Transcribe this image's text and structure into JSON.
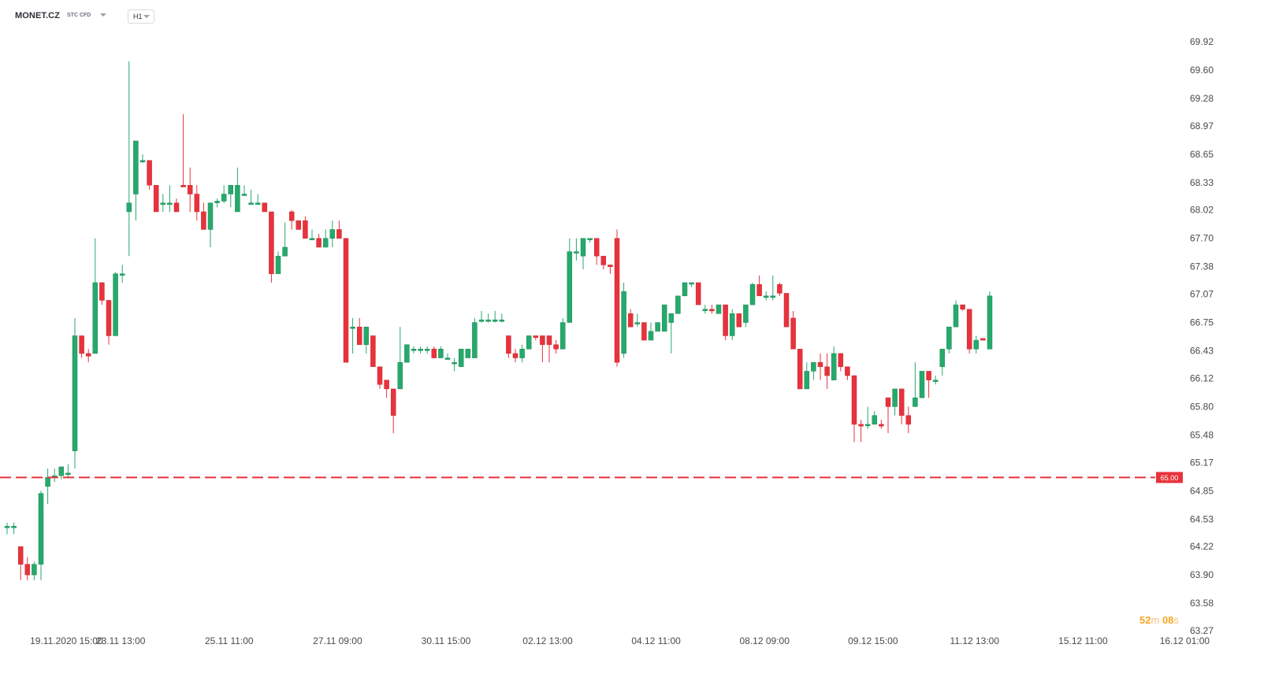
{
  "header": {
    "symbol": "MONET.CZ",
    "instrument_type": "STC CFD",
    "timeframe": "H1"
  },
  "countdown": {
    "minutes": "52",
    "m_unit": "m",
    "seconds": "08",
    "s_unit": "s"
  },
  "colors": {
    "up": "#26a96c",
    "down": "#e8323c",
    "price_line": "#e8323c",
    "axis_text": "#4a4a4a",
    "countdown": "#f5a623"
  },
  "chart_data": {
    "type": "candlestick",
    "timeframe": "H1",
    "y_ticks": [
      "69.92",
      "69.60",
      "69.28",
      "68.97",
      "68.65",
      "68.33",
      "68.02",
      "67.70",
      "67.38",
      "67.07",
      "66.75",
      "66.43",
      "66.12",
      "65.80",
      "65.48",
      "65.17",
      "64.85",
      "64.53",
      "64.22",
      "63.90",
      "63.58",
      "63.27"
    ],
    "ylim": [
      63.27,
      69.92
    ],
    "x_labels": [
      {
        "label": "19.11.2020  15:00",
        "index": 9
      },
      {
        "label": "23.11  13:00",
        "index": 17
      },
      {
        "label": "25.11  11:00",
        "index": 33
      },
      {
        "label": "27.11  09:00",
        "index": 49
      },
      {
        "label": "30.11  15:00",
        "index": 65
      },
      {
        "label": "02.12  13:00",
        "index": 80
      },
      {
        "label": "04.12  11:00",
        "index": 96
      },
      {
        "label": "08.12  09:00",
        "index": 112
      },
      {
        "label": "09.12  15:00",
        "index": 128
      },
      {
        "label": "11.12  13:00",
        "index": 143
      },
      {
        "label": "15.12  11:00",
        "index": 159
      },
      {
        "label": "16.12  01:00",
        "index": 174
      }
    ],
    "price_line": {
      "value": 65.0,
      "label": "65.00"
    },
    "candles": [
      {
        "o": 64.45,
        "h": 64.49,
        "l": 64.36,
        "c": 64.45
      },
      {
        "o": 64.45,
        "h": 64.49,
        "l": 64.36,
        "c": 64.45
      },
      {
        "o": 64.22,
        "h": 64.22,
        "l": 63.84,
        "c": 64.02
      },
      {
        "o": 64.02,
        "h": 64.1,
        "l": 63.84,
        "c": 63.9
      },
      {
        "o": 63.9,
        "h": 64.05,
        "l": 63.84,
        "c": 64.02
      },
      {
        "o": 64.02,
        "h": 64.85,
        "l": 63.84,
        "c": 64.82
      },
      {
        "o": 64.9,
        "h": 65.1,
        "l": 64.7,
        "c": 65.0
      },
      {
        "o": 65.02,
        "h": 65.1,
        "l": 64.95,
        "c": 65.02
      },
      {
        "o": 65.02,
        "h": 65.12,
        "l": 64.98,
        "c": 65.12
      },
      {
        "o": 65.05,
        "h": 65.15,
        "l": 65.0,
        "c": 65.05
      },
      {
        "o": 65.3,
        "h": 66.8,
        "l": 65.1,
        "c": 66.6
      },
      {
        "o": 66.6,
        "h": 66.6,
        "l": 66.35,
        "c": 66.4
      },
      {
        "o": 66.4,
        "h": 66.45,
        "l": 66.3,
        "c": 66.37
      },
      {
        "o": 66.4,
        "h": 67.7,
        "l": 66.4,
        "c": 67.2
      },
      {
        "o": 67.2,
        "h": 67.2,
        "l": 66.95,
        "c": 67.0
      },
      {
        "o": 67.0,
        "h": 67.0,
        "l": 66.5,
        "c": 66.6
      },
      {
        "o": 66.6,
        "h": 67.32,
        "l": 66.6,
        "c": 67.3
      },
      {
        "o": 67.3,
        "h": 67.4,
        "l": 67.2,
        "c": 67.3
      },
      {
        "o": 68.0,
        "h": 69.7,
        "l": 67.5,
        "c": 68.1
      },
      {
        "o": 68.2,
        "h": 68.8,
        "l": 67.9,
        "c": 68.8
      },
      {
        "o": 68.58,
        "h": 68.65,
        "l": 68.55,
        "c": 68.58
      },
      {
        "o": 68.58,
        "h": 68.58,
        "l": 68.25,
        "c": 68.3
      },
      {
        "o": 68.3,
        "h": 68.3,
        "l": 68.0,
        "c": 68.0
      },
      {
        "o": 68.1,
        "h": 68.2,
        "l": 68.0,
        "c": 68.1
      },
      {
        "o": 68.1,
        "h": 68.3,
        "l": 68.0,
        "c": 68.1
      },
      {
        "o": 68.1,
        "h": 68.15,
        "l": 68.0,
        "c": 68.0
      },
      {
        "o": 68.3,
        "h": 69.1,
        "l": 68.3,
        "c": 68.28
      },
      {
        "o": 68.3,
        "h": 68.5,
        "l": 68.0,
        "c": 68.2
      },
      {
        "o": 68.2,
        "h": 68.3,
        "l": 67.9,
        "c": 68.0
      },
      {
        "o": 68.0,
        "h": 68.1,
        "l": 67.8,
        "c": 67.8
      },
      {
        "o": 67.8,
        "h": 68.1,
        "l": 67.6,
        "c": 68.1
      },
      {
        "o": 68.1,
        "h": 68.15,
        "l": 68.05,
        "c": 68.12
      },
      {
        "o": 68.12,
        "h": 68.3,
        "l": 68.1,
        "c": 68.2
      },
      {
        "o": 68.2,
        "h": 68.3,
        "l": 68.05,
        "c": 68.3
      },
      {
        "o": 68.0,
        "h": 68.5,
        "l": 68.0,
        "c": 68.3
      },
      {
        "o": 68.2,
        "h": 68.3,
        "l": 68.2,
        "c": 68.2
      },
      {
        "o": 68.1,
        "h": 68.25,
        "l": 68.1,
        "c": 68.1
      },
      {
        "o": 68.1,
        "h": 68.2,
        "l": 68.1,
        "c": 68.1
      },
      {
        "o": 68.1,
        "h": 68.1,
        "l": 68.0,
        "c": 68.0
      },
      {
        "o": 68.0,
        "h": 68.0,
        "l": 67.2,
        "c": 67.3
      },
      {
        "o": 67.3,
        "h": 67.55,
        "l": 67.3,
        "c": 67.5
      },
      {
        "o": 67.5,
        "h": 67.88,
        "l": 67.5,
        "c": 67.6
      },
      {
        "o": 68.0,
        "h": 68.02,
        "l": 67.8,
        "c": 67.9
      },
      {
        "o": 67.9,
        "h": 67.9,
        "l": 67.8,
        "c": 67.8
      },
      {
        "o": 67.9,
        "h": 67.95,
        "l": 67.7,
        "c": 67.7
      },
      {
        "o": 67.7,
        "h": 67.8,
        "l": 67.7,
        "c": 67.7
      },
      {
        "o": 67.7,
        "h": 67.75,
        "l": 67.6,
        "c": 67.6
      },
      {
        "o": 67.6,
        "h": 67.8,
        "l": 67.6,
        "c": 67.7
      },
      {
        "o": 67.7,
        "h": 67.9,
        "l": 67.6,
        "c": 67.8
      },
      {
        "o": 67.8,
        "h": 67.9,
        "l": 67.7,
        "c": 67.7
      },
      {
        "o": 67.7,
        "h": 67.7,
        "l": 66.3,
        "c": 66.3
      },
      {
        "o": 66.7,
        "h": 66.8,
        "l": 66.4,
        "c": 66.7
      },
      {
        "o": 66.7,
        "h": 66.8,
        "l": 66.5,
        "c": 66.5
      },
      {
        "o": 66.5,
        "h": 66.7,
        "l": 66.4,
        "c": 66.7
      },
      {
        "o": 66.6,
        "h": 66.6,
        "l": 66.25,
        "c": 66.25
      },
      {
        "o": 66.25,
        "h": 66.25,
        "l": 66.0,
        "c": 66.05
      },
      {
        "o": 66.1,
        "h": 66.1,
        "l": 65.9,
        "c": 66.0
      },
      {
        "o": 66.0,
        "h": 66.0,
        "l": 65.5,
        "c": 65.7
      },
      {
        "o": 66.0,
        "h": 66.7,
        "l": 66.0,
        "c": 66.3
      },
      {
        "o": 66.3,
        "h": 66.5,
        "l": 66.3,
        "c": 66.5
      },
      {
        "o": 66.45,
        "h": 66.48,
        "l": 66.4,
        "c": 66.45
      },
      {
        "o": 66.45,
        "h": 66.48,
        "l": 66.4,
        "c": 66.45
      },
      {
        "o": 66.45,
        "h": 66.48,
        "l": 66.4,
        "c": 66.45
      },
      {
        "o": 66.45,
        "h": 66.48,
        "l": 66.35,
        "c": 66.35
      },
      {
        "o": 66.35,
        "h": 66.48,
        "l": 66.35,
        "c": 66.45
      },
      {
        "o": 66.35,
        "h": 66.4,
        "l": 66.33,
        "c": 66.35
      },
      {
        "o": 66.3,
        "h": 66.35,
        "l": 66.2,
        "c": 66.3
      },
      {
        "o": 66.25,
        "h": 66.45,
        "l": 66.25,
        "c": 66.45
      },
      {
        "o": 66.35,
        "h": 66.45,
        "l": 66.35,
        "c": 66.45
      },
      {
        "o": 66.35,
        "h": 66.8,
        "l": 66.35,
        "c": 66.75
      },
      {
        "o": 66.78,
        "h": 66.88,
        "l": 66.75,
        "c": 66.78
      },
      {
        "o": 66.78,
        "h": 66.85,
        "l": 66.75,
        "c": 66.78
      },
      {
        "o": 66.78,
        "h": 66.88,
        "l": 66.75,
        "c": 66.78
      },
      {
        "o": 66.78,
        "h": 66.85,
        "l": 66.75,
        "c": 66.78
      },
      {
        "o": 66.6,
        "h": 66.6,
        "l": 66.35,
        "c": 66.4
      },
      {
        "o": 66.4,
        "h": 66.45,
        "l": 66.3,
        "c": 66.35
      },
      {
        "o": 66.35,
        "h": 66.5,
        "l": 66.3,
        "c": 66.45
      },
      {
        "o": 66.45,
        "h": 66.6,
        "l": 66.45,
        "c": 66.6
      },
      {
        "o": 66.6,
        "h": 66.6,
        "l": 66.55,
        "c": 66.58
      },
      {
        "o": 66.6,
        "h": 66.6,
        "l": 66.3,
        "c": 66.5
      },
      {
        "o": 66.6,
        "h": 66.6,
        "l": 66.3,
        "c": 66.5
      },
      {
        "o": 66.5,
        "h": 66.55,
        "l": 66.4,
        "c": 66.45
      },
      {
        "o": 66.45,
        "h": 66.8,
        "l": 66.45,
        "c": 66.75
      },
      {
        "o": 66.75,
        "h": 67.7,
        "l": 66.75,
        "c": 67.55
      },
      {
        "o": 67.55,
        "h": 67.7,
        "l": 67.45,
        "c": 67.55
      },
      {
        "o": 67.5,
        "h": 67.7,
        "l": 67.35,
        "c": 67.7
      },
      {
        "o": 67.7,
        "h": 67.7,
        "l": 67.65,
        "c": 67.7
      },
      {
        "o": 67.7,
        "h": 67.7,
        "l": 67.4,
        "c": 67.5
      },
      {
        "o": 67.5,
        "h": 67.5,
        "l": 67.35,
        "c": 67.4
      },
      {
        "o": 67.4,
        "h": 67.4,
        "l": 67.3,
        "c": 67.38
      },
      {
        "o": 67.7,
        "h": 67.8,
        "l": 66.25,
        "c": 66.3
      },
      {
        "o": 66.4,
        "h": 67.2,
        "l": 66.35,
        "c": 67.1
      },
      {
        "o": 66.85,
        "h": 66.9,
        "l": 66.7,
        "c": 66.7
      },
      {
        "o": 66.75,
        "h": 66.85,
        "l": 66.7,
        "c": 66.75
      },
      {
        "o": 66.75,
        "h": 66.75,
        "l": 66.55,
        "c": 66.55
      },
      {
        "o": 66.55,
        "h": 66.75,
        "l": 66.55,
        "c": 66.65
      },
      {
        "o": 66.65,
        "h": 66.75,
        "l": 66.65,
        "c": 66.75
      },
      {
        "o": 66.65,
        "h": 66.95,
        "l": 66.65,
        "c": 66.95
      },
      {
        "o": 66.75,
        "h": 66.85,
        "l": 66.4,
        "c": 66.85
      },
      {
        "o": 66.85,
        "h": 67.05,
        "l": 66.85,
        "c": 67.05
      },
      {
        "o": 67.05,
        "h": 67.2,
        "l": 67.05,
        "c": 67.2
      },
      {
        "o": 67.2,
        "h": 67.2,
        "l": 67.15,
        "c": 67.2
      },
      {
        "o": 67.2,
        "h": 67.2,
        "l": 66.95,
        "c": 66.95
      },
      {
        "o": 66.9,
        "h": 66.95,
        "l": 66.85,
        "c": 66.9
      },
      {
        "o": 66.9,
        "h": 66.95,
        "l": 66.85,
        "c": 66.88
      },
      {
        "o": 66.85,
        "h": 66.95,
        "l": 66.85,
        "c": 66.95
      },
      {
        "o": 66.95,
        "h": 66.95,
        "l": 66.55,
        "c": 66.6
      },
      {
        "o": 66.6,
        "h": 66.9,
        "l": 66.55,
        "c": 66.85
      },
      {
        "o": 66.85,
        "h": 66.85,
        "l": 66.7,
        "c": 66.7
      },
      {
        "o": 66.75,
        "h": 66.95,
        "l": 66.7,
        "c": 66.95
      },
      {
        "o": 66.95,
        "h": 67.2,
        "l": 66.95,
        "c": 67.18
      },
      {
        "o": 67.18,
        "h": 67.28,
        "l": 67.05,
        "c": 67.05
      },
      {
        "o": 67.05,
        "h": 67.1,
        "l": 67.0,
        "c": 67.05
      },
      {
        "o": 67.05,
        "h": 67.28,
        "l": 67.0,
        "c": 67.05
      },
      {
        "o": 67.18,
        "h": 67.2,
        "l": 67.05,
        "c": 67.08
      },
      {
        "o": 67.08,
        "h": 67.08,
        "l": 66.7,
        "c": 66.7
      },
      {
        "o": 66.8,
        "h": 66.88,
        "l": 66.45,
        "c": 66.45
      },
      {
        "o": 66.45,
        "h": 66.45,
        "l": 66.0,
        "c": 66.0
      },
      {
        "o": 66.0,
        "h": 66.3,
        "l": 66.0,
        "c": 66.2
      },
      {
        "o": 66.2,
        "h": 66.3,
        "l": 66.1,
        "c": 66.3
      },
      {
        "o": 66.3,
        "h": 66.4,
        "l": 66.1,
        "c": 66.25
      },
      {
        "o": 66.25,
        "h": 66.4,
        "l": 66.0,
        "c": 66.15
      },
      {
        "o": 66.1,
        "h": 66.48,
        "l": 66.1,
        "c": 66.4
      },
      {
        "o": 66.4,
        "h": 66.4,
        "l": 66.2,
        "c": 66.25
      },
      {
        "o": 66.25,
        "h": 66.25,
        "l": 66.1,
        "c": 66.15
      },
      {
        "o": 66.15,
        "h": 66.15,
        "l": 65.4,
        "c": 65.6
      },
      {
        "o": 65.6,
        "h": 65.65,
        "l": 65.4,
        "c": 65.58
      },
      {
        "o": 65.6,
        "h": 65.8,
        "l": 65.55,
        "c": 65.6
      },
      {
        "o": 65.6,
        "h": 65.75,
        "l": 65.6,
        "c": 65.7
      },
      {
        "o": 65.6,
        "h": 65.65,
        "l": 65.55,
        "c": 65.58
      },
      {
        "o": 65.9,
        "h": 65.9,
        "l": 65.5,
        "c": 65.8
      },
      {
        "o": 65.8,
        "h": 66.0,
        "l": 65.7,
        "c": 66.0
      },
      {
        "o": 66.0,
        "h": 66.0,
        "l": 65.6,
        "c": 65.7
      },
      {
        "o": 65.7,
        "h": 65.8,
        "l": 65.5,
        "c": 65.6
      },
      {
        "o": 65.8,
        "h": 66.3,
        "l": 65.8,
        "c": 65.9
      },
      {
        "o": 65.9,
        "h": 66.2,
        "l": 65.9,
        "c": 66.2
      },
      {
        "o": 66.2,
        "h": 66.2,
        "l": 65.9,
        "c": 66.1
      },
      {
        "o": 66.1,
        "h": 66.15,
        "l": 66.05,
        "c": 66.1
      },
      {
        "o": 66.25,
        "h": 66.45,
        "l": 66.15,
        "c": 66.45
      },
      {
        "o": 66.45,
        "h": 66.7,
        "l": 66.4,
        "c": 66.7
      },
      {
        "o": 66.7,
        "h": 67.0,
        "l": 66.7,
        "c": 66.95
      },
      {
        "o": 66.95,
        "h": 66.95,
        "l": 66.88,
        "c": 66.9
      },
      {
        "o": 66.9,
        "h": 66.9,
        "l": 66.4,
        "c": 66.45
      },
      {
        "o": 66.45,
        "h": 66.6,
        "l": 66.4,
        "c": 66.55
      },
      {
        "o": 66.57,
        "h": 66.57,
        "l": 66.55,
        "c": 66.55
      },
      {
        "o": 66.45,
        "h": 67.1,
        "l": 66.45,
        "c": 67.05
      }
    ]
  }
}
